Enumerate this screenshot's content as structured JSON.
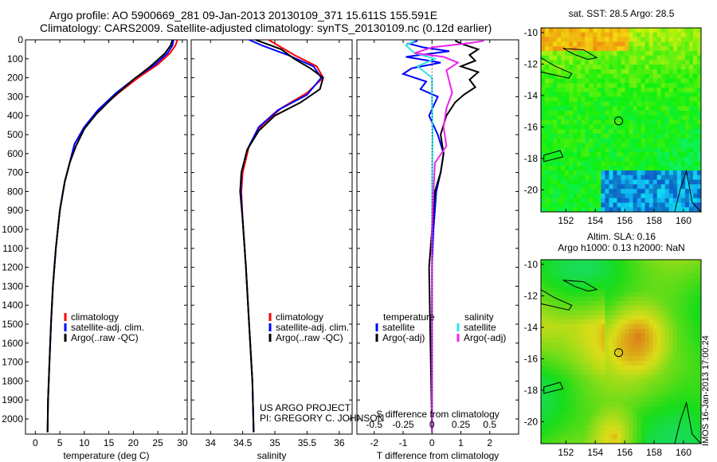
{
  "header": {
    "line1": "Argo profile: AO 5900669_281 09-Jan-2013 20130109_371 15.611S 155.591E",
    "line2": "Climatology: CARS2009. Satellite-adjusted climatology: synTS_20130109.nc (0.12d earlier)"
  },
  "stamp": "IMOS 16-Jan-2013 17:00:24",
  "project": {
    "line1": "US ARGO PROJECT",
    "line2": "PI: GREGORY C. JOHNSON"
  },
  "colors": {
    "clim": "#ff0000",
    "sat": "#0000ff",
    "argo": "#000000",
    "sat_s": "#33e0e8",
    "argo_s": "#ee22ee"
  },
  "chart_data": [
    {
      "type": "line",
      "name": "temperature-panel",
      "xlabel": "temperature (deg C)",
      "ylabel": "",
      "xlim": [
        -2,
        31
      ],
      "ylim": [
        2080,
        0
      ],
      "xticks": [
        0,
        5,
        10,
        15,
        20,
        25,
        30
      ],
      "yticks": [
        0,
        100,
        200,
        300,
        400,
        500,
        600,
        700,
        800,
        900,
        1000,
        1100,
        1200,
        1300,
        1400,
        1500,
        1600,
        1700,
        1800,
        1900,
        2000
      ],
      "legend": [
        "climatology",
        "satellite-adj. clim.",
        "Argo(..raw -QC)"
      ],
      "series": [
        {
          "name": "climatology",
          "color": "#ff0000",
          "points": [
            [
              29,
              0
            ],
            [
              28.6,
              30
            ],
            [
              27.5,
              70
            ],
            [
              25,
              130
            ],
            [
              21,
              200
            ],
            [
              17,
              280
            ],
            [
              13,
              370
            ],
            [
              10,
              460
            ],
            [
              8,
              550
            ],
            [
              7,
              650
            ],
            [
              6,
              750
            ],
            [
              5,
              900
            ],
            [
              4.2,
              1100
            ],
            [
              3.6,
              1300
            ],
            [
              3.2,
              1500
            ],
            [
              2.9,
              1700
            ],
            [
              2.6,
              1900
            ],
            [
              2.5,
              2070
            ]
          ]
        },
        {
          "name": "satellite-adj. clim.",
          "color": "#0000ff",
          "points": [
            [
              28.2,
              0
            ],
            [
              28,
              30
            ],
            [
              27,
              70
            ],
            [
              24.5,
              130
            ],
            [
              20.5,
              200
            ],
            [
              16.5,
              280
            ],
            [
              12.8,
              370
            ],
            [
              10,
              460
            ],
            [
              8,
              550
            ],
            [
              7,
              650
            ],
            [
              6,
              750
            ],
            [
              5,
              900
            ],
            [
              4.2,
              1100
            ],
            [
              3.6,
              1300
            ],
            [
              3.2,
              1500
            ],
            [
              2.9,
              1700
            ],
            [
              2.6,
              1900
            ],
            [
              2.5,
              2070
            ]
          ]
        },
        {
          "name": "Argo(..raw -QC)",
          "color": "#000000",
          "points": [
            [
              28,
              0
            ],
            [
              27.6,
              30
            ],
            [
              26.5,
              70
            ],
            [
              23.5,
              140
            ],
            [
              20,
              210
            ],
            [
              16,
              300
            ],
            [
              12.5,
              390
            ],
            [
              10,
              470
            ],
            [
              8.3,
              560
            ],
            [
              7,
              650
            ],
            [
              6,
              750
            ],
            [
              5,
              900
            ],
            [
              4.2,
              1100
            ],
            [
              3.6,
              1300
            ],
            [
              3.2,
              1500
            ],
            [
              2.9,
              1700
            ],
            [
              2.6,
              1900
            ],
            [
              2.5,
              2070
            ]
          ]
        }
      ]
    },
    {
      "type": "line",
      "name": "salinity-panel",
      "xlabel": "salinity",
      "xlim": [
        33.7,
        36.2
      ],
      "ylim": [
        2080,
        0
      ],
      "xticks": [
        34,
        34.5,
        35,
        35.5,
        36
      ],
      "legend": [
        "climatology",
        "satellite-adj. clim.",
        "Argo(..raw -QC)"
      ],
      "series": [
        {
          "name": "climatology",
          "color": "#ff0000",
          "points": [
            [
              34.9,
              0
            ],
            [
              35.3,
              80
            ],
            [
              35.65,
              140
            ],
            [
              35.75,
              200
            ],
            [
              35.5,
              280
            ],
            [
              35.1,
              360
            ],
            [
              34.8,
              450
            ],
            [
              34.6,
              560
            ],
            [
              34.5,
              700
            ],
            [
              34.48,
              800
            ],
            [
              34.5,
              950
            ],
            [
              34.55,
              1200
            ],
            [
              34.6,
              1500
            ],
            [
              34.65,
              1800
            ],
            [
              34.67,
              2070
            ]
          ]
        },
        {
          "name": "satellite-adj. clim.",
          "color": "#0000ff",
          "points": [
            [
              34.6,
              0
            ],
            [
              34.8,
              30
            ],
            [
              35.2,
              80
            ],
            [
              35.6,
              140
            ],
            [
              35.72,
              200
            ],
            [
              35.5,
              290
            ],
            [
              35.05,
              370
            ],
            [
              34.75,
              460
            ],
            [
              34.57,
              580
            ],
            [
              34.48,
              700
            ],
            [
              34.47,
              800
            ],
            [
              34.5,
              950
            ],
            [
              34.55,
              1200
            ],
            [
              34.6,
              1500
            ],
            [
              34.65,
              1800
            ],
            [
              34.67,
              2070
            ]
          ]
        },
        {
          "name": "Argo(..raw -QC)",
          "color": "#000000",
          "points": [
            [
              34.7,
              0
            ],
            [
              35.1,
              50
            ],
            [
              35.3,
              100
            ],
            [
              35.55,
              150
            ],
            [
              35.75,
              200
            ],
            [
              35.7,
              260
            ],
            [
              35.4,
              330
            ],
            [
              35.0,
              400
            ],
            [
              34.75,
              480
            ],
            [
              34.57,
              580
            ],
            [
              34.48,
              700
            ],
            [
              34.46,
              800
            ],
            [
              34.5,
              950
            ],
            [
              34.55,
              1200
            ],
            [
              34.6,
              1500
            ],
            [
              34.65,
              1800
            ],
            [
              34.67,
              2070
            ]
          ]
        }
      ]
    },
    {
      "type": "line",
      "name": "difference-panel",
      "xlabel": "T difference from climatology",
      "xlabel_top": "S difference from climatology",
      "xlim": [
        -2.6,
        3
      ],
      "ylim": [
        2080,
        0
      ],
      "xticks": [
        -2,
        -1,
        0,
        1,
        2
      ],
      "xticks_top": [
        -0.5,
        -0.25,
        0,
        0.25,
        0.5
      ],
      "xticks_top_labels": [
        "-0.5",
        "-0.25",
        "0",
        "0.25",
        "0.5"
      ],
      "legend_temperature": {
        "title": "temperature",
        "items": [
          "satellite",
          "Argo(-adj)"
        ]
      },
      "legend_salinity": {
        "title": "salinity",
        "items": [
          "satellite",
          "Argo(-adj)"
        ]
      },
      "series": [
        {
          "name": "T satellite",
          "color": "#0000ff",
          "points": [
            [
              -0.5,
              5
            ],
            [
              -0.8,
              20
            ],
            [
              -0.3,
              40
            ],
            [
              0.6,
              60
            ],
            [
              -0.9,
              90
            ],
            [
              0.3,
              120
            ],
            [
              -0.7,
              150
            ],
            [
              -1,
              180
            ],
            [
              -0.2,
              220
            ],
            [
              -0.4,
              260
            ],
            [
              0.2,
              300
            ],
            [
              -0.1,
              400
            ],
            [
              0.2,
              500
            ],
            [
              0.4,
              600
            ],
            [
              0.3,
              700
            ],
            [
              0.15,
              800
            ],
            [
              0.05,
              1000
            ],
            [
              0,
              1200
            ],
            [
              0,
              2070
            ]
          ]
        },
        {
          "name": "T Argo(-adj)",
          "color": "#000000",
          "points": [
            [
              0.8,
              5
            ],
            [
              1.1,
              25
            ],
            [
              1.6,
              50
            ],
            [
              1.3,
              80
            ],
            [
              1.5,
              110
            ],
            [
              1.0,
              140
            ],
            [
              1.6,
              170
            ],
            [
              1.3,
              210
            ],
            [
              1.5,
              250
            ],
            [
              1.1,
              290
            ],
            [
              0.8,
              330
            ],
            [
              0.5,
              400
            ],
            [
              0.3,
              500
            ],
            [
              0.4,
              600
            ],
            [
              0.3,
              700
            ],
            [
              0.1,
              800
            ],
            [
              0,
              1000
            ],
            [
              -0.1,
              1200
            ],
            [
              0,
              2070
            ]
          ]
        },
        {
          "name": "S satellite",
          "color": "#33e0e8",
          "points": [
            [
              -0.6,
              5
            ],
            [
              -0.9,
              30
            ],
            [
              -0.6,
              70
            ],
            [
              0.1,
              100
            ],
            [
              -0.5,
              140
            ],
            [
              0,
              200
            ],
            [
              0,
              300
            ],
            [
              0.02,
              500
            ],
            [
              0.01,
              700
            ],
            [
              0,
              1000
            ],
            [
              0,
              2070
            ]
          ]
        },
        {
          "name": "S Argo(-adj)",
          "color": "#ee22ee",
          "points": [
            [
              1.8,
              5
            ],
            [
              1.4,
              15
            ],
            [
              0,
              40
            ],
            [
              -0.6,
              70
            ],
            [
              0.4,
              90
            ],
            [
              0.9,
              120
            ],
            [
              0.5,
              160
            ],
            [
              0.6,
              220
            ],
            [
              0.7,
              280
            ],
            [
              0.5,
              360
            ],
            [
              0.4,
              460
            ],
            [
              0.5,
              560
            ],
            [
              0.1,
              650
            ],
            [
              0.05,
              800
            ],
            [
              0,
              1000
            ],
            [
              0,
              2070
            ]
          ]
        }
      ]
    },
    {
      "type": "heatmap",
      "name": "sst-map",
      "title": "sat. SST: 28.5  Argo: 28.5",
      "xlim": [
        150.3,
        161.2
      ],
      "ylim": [
        -21.4,
        -9.7
      ],
      "xticks": [
        152,
        154,
        156,
        158,
        160
      ],
      "yticks": [
        -10,
        -12,
        -14,
        -16,
        -18,
        -20
      ],
      "argo_position": [
        155.591,
        -15.611
      ]
    },
    {
      "type": "heatmap",
      "name": "sla-map",
      "title_line1": "Altim. SLA: 0.16",
      "title_line2": "Argo h1000: 0.13 h2000: NaN",
      "xlim": [
        150.3,
        161.2
      ],
      "ylim": [
        -21.4,
        -9.7
      ],
      "xticks": [
        152,
        154,
        156,
        158,
        160
      ],
      "yticks": [
        -10,
        -12,
        -14,
        -16,
        -18,
        -20
      ],
      "argo_position": [
        155.591,
        -15.611
      ]
    }
  ]
}
